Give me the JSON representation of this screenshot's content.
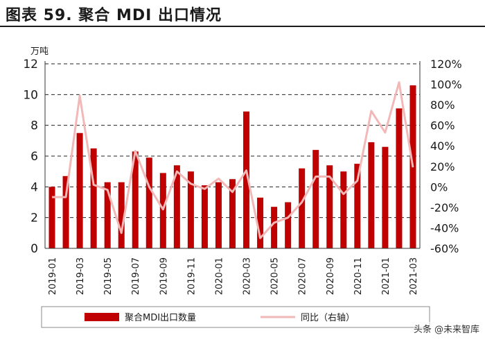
{
  "title": "图表 59. 聚合 MDI 出口情况",
  "watermark": "头条 @未来智库",
  "chart_data": {
    "type": "bar",
    "ylabel": "万吨",
    "ylim": [
      0,
      12
    ],
    "y_ticks": [
      "0",
      "2",
      "4",
      "6",
      "8",
      "10",
      "12"
    ],
    "y2lim": [
      -60,
      120
    ],
    "y2_ticks": [
      "-60%",
      "-40%",
      "-20%",
      "0%",
      "20%",
      "40%",
      "60%",
      "80%",
      "100%",
      "120%"
    ],
    "x_ticks": [
      "2019-01",
      "2019-03",
      "2019-05",
      "2019-07",
      "2019-09",
      "2019-11",
      "2020-01",
      "2020-03",
      "2020-05",
      "2020-07",
      "2020-09",
      "2020-11",
      "2021-01",
      "2021-03"
    ],
    "categories": [
      "2019-01",
      "2019-02",
      "2019-03",
      "2019-04",
      "2019-05",
      "2019-06",
      "2019-07",
      "2019-08",
      "2019-09",
      "2019-10",
      "2019-11",
      "2019-12",
      "2020-01",
      "2020-02",
      "2020-03",
      "2020-04",
      "2020-05",
      "2020-06",
      "2020-07",
      "2020-08",
      "2020-09",
      "2020-10",
      "2020-11",
      "2020-12",
      "2021-01",
      "2021-02",
      "2021-03"
    ],
    "series": [
      {
        "name": "聚合MDI出口数量",
        "axis": "left",
        "kind": "bar",
        "color": "#c00000",
        "values": [
          4.0,
          4.7,
          7.5,
          6.5,
          4.3,
          4.3,
          6.3,
          5.9,
          4.9,
          5.4,
          5.0,
          4.1,
          4.3,
          4.5,
          8.9,
          3.3,
          2.7,
          3.0,
          5.2,
          6.4,
          5.4,
          5.0,
          5.5,
          6.9,
          6.6,
          9.1,
          10.6
        ]
      },
      {
        "name": "同比（右轴）",
        "axis": "right",
        "kind": "line",
        "color": "#f2b8b8",
        "values": [
          -10,
          -10,
          89,
          2,
          -3,
          -45,
          35,
          0,
          -22,
          15,
          3,
          -2,
          8,
          -5,
          16,
          -50,
          -35,
          -30,
          -15,
          10,
          10,
          -7,
          6,
          74,
          53,
          102,
          19
        ]
      }
    ],
    "legend": "bottom"
  }
}
